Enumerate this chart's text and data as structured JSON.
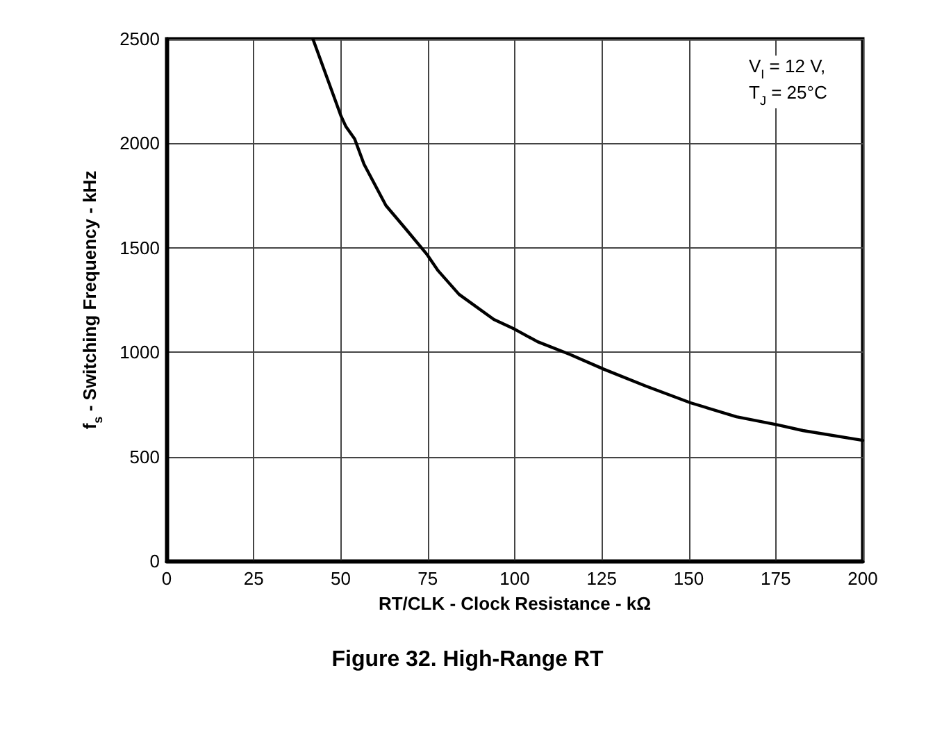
{
  "chart_data": {
    "type": "line",
    "title": "Figure 32. High-Range RT",
    "xlabel": "RT/CLK - Clock Resistance - kΩ",
    "ylabel": "f$_{s}$ - Switching Frequency - kHz",
    "annotations": [
      "V$_{I}$ = 12 V,",
      "T$_{J}$ = 25°C"
    ],
    "series": [
      {
        "color": "#000000",
        "x": [
          42,
          50,
          51.5,
          54,
          56.7,
          63,
          68.7,
          74.7,
          78,
          84,
          94,
          100,
          106.6,
          115.8,
          125.7,
          137.7,
          150.5,
          163.7,
          175.6,
          182.8,
          200
        ],
        "values": [
          2500,
          2134,
          2080,
          2021,
          1900,
          1702,
          1590,
          1470,
          1390,
          1277,
          1157,
          1110,
          1050,
          990,
          918,
          838,
          758,
          691,
          652,
          625,
          578
        ]
      }
    ],
    "xlim": [
      0,
      200
    ],
    "xticks": [
      0,
      25,
      50,
      75,
      100,
      125,
      150,
      175,
      200
    ],
    "ylim": [
      0,
      2500
    ],
    "yticks": [
      0,
      500,
      1000,
      1500,
      2000,
      2500
    ],
    "grid": true,
    "marker": "none",
    "line_style": "solid"
  }
}
